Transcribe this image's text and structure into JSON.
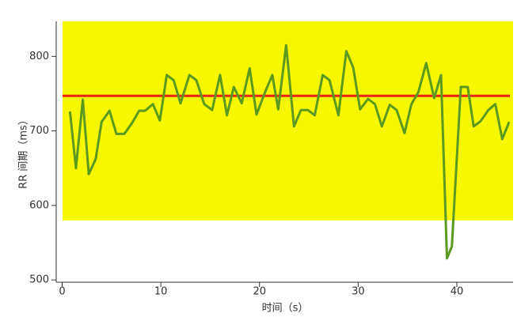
{
  "chart_data": {
    "type": "line",
    "x_label": "时间（s）",
    "y_label": "RR 间期（ms）",
    "x": [
      0.8,
      1.4,
      2.1,
      2.7,
      3.4,
      4.0,
      4.8,
      5.5,
      6.3,
      7.1,
      7.8,
      8.4,
      9.2,
      9.9,
      10.6,
      11.3,
      12.0,
      12.9,
      13.6,
      14.4,
      15.2,
      16.0,
      16.7,
      17.4,
      18.2,
      19.0,
      19.7,
      20.5,
      21.3,
      21.9,
      22.7,
      23.5,
      24.2,
      24.9,
      25.6,
      26.4,
      27.1,
      28.0,
      28.8,
      29.5,
      30.2,
      31.0,
      31.7,
      32.4,
      33.2,
      33.9,
      34.7,
      35.4,
      36.1,
      36.9,
      37.7,
      38.4,
      39.0,
      39.5,
      40.4,
      41.1,
      41.7,
      42.4,
      43.2,
      43.9,
      44.6,
      45.3
    ],
    "series": [
      {
        "color": "#5b9a1e",
        "values": [
          726,
          650,
          742,
          642,
          662,
          712,
          727,
          696,
          696,
          711,
          727,
          727,
          736,
          714,
          775,
          768,
          737,
          775,
          768,
          736,
          728,
          775,
          721,
          759,
          737,
          784,
          722,
          750,
          775,
          729,
          815,
          706,
          728,
          728,
          721,
          775,
          768,
          721,
          807,
          785,
          729,
          743,
          736,
          706,
          735,
          728,
          697,
          736,
          752,
          791,
          744,
          775,
          529,
          545,
          759,
          759,
          706,
          713,
          728,
          736,
          689,
          712
        ]
      }
    ],
    "band": {
      "from": 580,
      "color": "#f7f700"
    },
    "reference_line": {
      "value": 747,
      "color": "#e8231b"
    },
    "xlim": [
      -0.6,
      45.7
    ],
    "ylim": [
      497,
      847
    ],
    "xticks": [
      0,
      10,
      20,
      30,
      40
    ],
    "yticks": [
      500,
      600,
      700,
      800
    ]
  }
}
